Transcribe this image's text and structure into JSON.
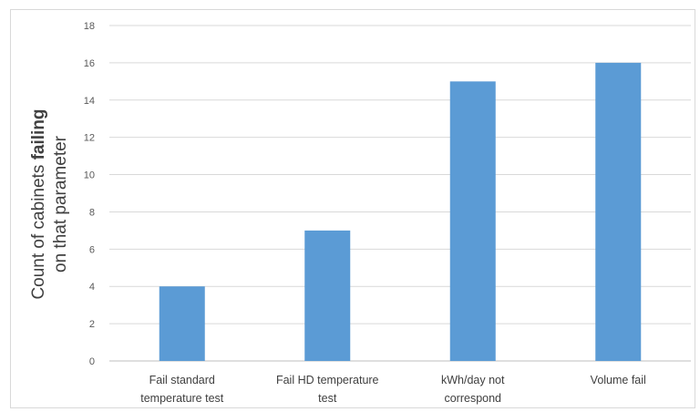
{
  "chart_data": {
    "type": "bar",
    "categories": [
      [
        "Fail standard",
        "temperature test"
      ],
      [
        "Fail HD temperature",
        "test"
      ],
      [
        "kWh/day not",
        "correspond"
      ],
      [
        "Volume fail"
      ]
    ],
    "values": [
      4,
      7,
      15,
      16
    ],
    "title": "",
    "xlabel": "",
    "ylabel_lines": [
      [
        {
          "text": "Count of cabinets ",
          "bold": false
        },
        {
          "text": "failing",
          "bold": true
        }
      ],
      [
        {
          "text": "on that parameter",
          "bold": false
        }
      ]
    ],
    "ylim": [
      0,
      18
    ],
    "yticks": [
      0,
      2,
      4,
      6,
      8,
      10,
      12,
      14,
      16,
      18
    ],
    "grid": true,
    "legend": "none",
    "bar_color": "#5b9bd5",
    "grid_color": "#d9d9d9"
  }
}
